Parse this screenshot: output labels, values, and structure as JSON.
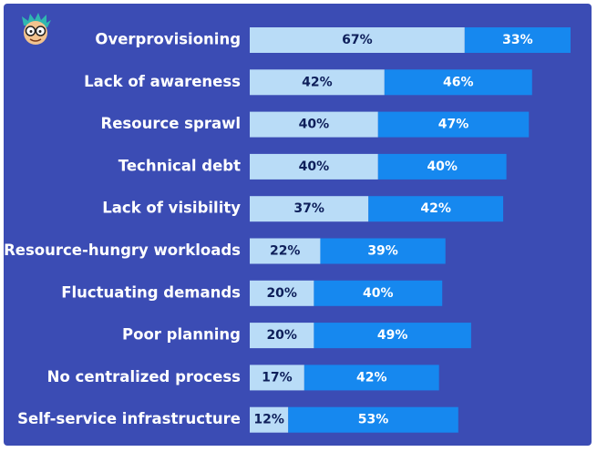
{
  "colors": {
    "background": "#3b4cb4",
    "series1": "#b9dcf7",
    "series2": "#1688ef",
    "series1_text": "#0e1f5a",
    "series2_text": "#ffffff"
  },
  "avatar_icon": "cartoon-face-avatar",
  "chart_data": {
    "type": "bar",
    "orientation": "horizontal",
    "stacked": true,
    "categories": [
      "Overprovisioning",
      "Lack of awareness",
      "Resource sprawl",
      "Technical debt",
      "Lack of visibility",
      "Resource-hungry workloads",
      "Fluctuating demands",
      "Poor planning",
      "No centralized process",
      "Self-service infrastructure"
    ],
    "series": [
      {
        "values": [
          67,
          42,
          40,
          40,
          37,
          22,
          20,
          20,
          17,
          12
        ],
        "labels": [
          "67%",
          "42%",
          "40%",
          "40%",
          "37%",
          "22%",
          "20%",
          "20%",
          "17%",
          "12%"
        ]
      },
      {
        "values": [
          33,
          46,
          47,
          40,
          42,
          39,
          40,
          49,
          42,
          53
        ],
        "labels": [
          "33%",
          "46%",
          "47%",
          "40%",
          "42%",
          "39%",
          "40%",
          "49%",
          "42%",
          "53%"
        ]
      }
    ],
    "xlim": [
      0,
      100
    ],
    "grid": false,
    "legend": "none"
  }
}
